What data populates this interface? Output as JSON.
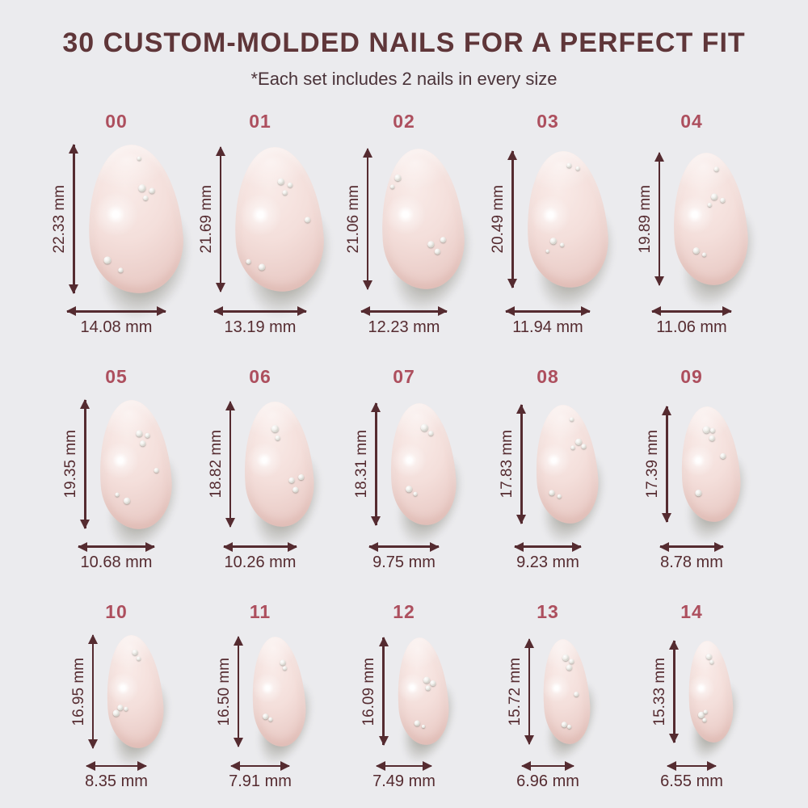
{
  "title": "30 CUSTOM-MOLDED NAILS FOR A PERFECT FIT",
  "subtitle": "*Each set includes 2 nails in every size",
  "unit": "mm",
  "colors": {
    "bg": "#ebebee",
    "title": "#5f3639",
    "subtitle": "#4a3339",
    "accent": "#ad4f5e",
    "dim": "#552b30",
    "nail_light": "#f9ebe8",
    "nail_base": "#f4dfdb",
    "nail_dark": "#e9cbc6",
    "shadow": "#aeada6",
    "gem_light": "#ffffff",
    "gem_dark": "#b4b3aa"
  },
  "sizes": [
    {
      "label": "00",
      "height_mm": 22.33,
      "width_mm": 14.08,
      "height_text": "22.33 mm",
      "width_text": "14.08 mm",
      "gems": [
        [
          57,
          8,
          5
        ],
        [
          56,
          27,
          9
        ],
        [
          67,
          30,
          7
        ],
        [
          60,
          35,
          6
        ],
        [
          14,
          74,
          9
        ],
        [
          28,
          82,
          6
        ]
      ]
    },
    {
      "label": "01",
      "height_mm": 21.69,
      "width_mm": 13.19,
      "height_text": "21.69 mm",
      "width_text": "13.19 mm",
      "gems": [
        [
          52,
          22,
          8
        ],
        [
          63,
          25,
          6
        ],
        [
          57,
          30,
          6
        ],
        [
          80,
          50,
          7
        ],
        [
          10,
          76,
          6
        ],
        [
          24,
          80,
          8
        ]
      ]
    },
    {
      "label": "02",
      "height_mm": 21.06,
      "width_mm": 12.23,
      "height_text": "21.06 mm",
      "width_text": "12.23 mm",
      "gems": [
        [
          20,
          17,
          8
        ],
        [
          14,
          24,
          5
        ],
        [
          55,
          66,
          8
        ],
        [
          70,
          64,
          7
        ],
        [
          62,
          72,
          7
        ]
      ]
    },
    {
      "label": "03",
      "height_mm": 20.49,
      "width_mm": 11.94,
      "height_text": "20.49 mm",
      "width_text": "11.94 mm",
      "gems": [
        [
          55,
          9,
          6
        ],
        [
          66,
          12,
          5
        ],
        [
          27,
          63,
          8
        ],
        [
          40,
          67,
          5
        ],
        [
          21,
          71,
          4
        ]
      ]
    },
    {
      "label": "04",
      "height_mm": 19.89,
      "width_mm": 11.06,
      "height_text": "19.89 mm",
      "width_text": "11.06 mm",
      "gems": [
        [
          60,
          11,
          6
        ],
        [
          54,
          31,
          8
        ],
        [
          66,
          35,
          6
        ],
        [
          48,
          38,
          5
        ],
        [
          24,
          71,
          8
        ],
        [
          36,
          75,
          5
        ]
      ]
    },
    {
      "label": "05",
      "height_mm": 19.35,
      "width_mm": 10.68,
      "height_text": "19.35 mm",
      "width_text": "10.68 mm",
      "gems": [
        [
          54,
          24,
          8
        ],
        [
          67,
          26,
          6
        ],
        [
          59,
          32,
          7
        ],
        [
          76,
          54,
          6
        ],
        [
          19,
          71,
          5
        ],
        [
          31,
          75,
          8
        ]
      ]
    },
    {
      "label": "06",
      "height_mm": 18.82,
      "width_mm": 10.26,
      "height_text": "18.82 mm",
      "width_text": "10.26 mm",
      "gems": [
        [
          44,
          19,
          9
        ],
        [
          49,
          27,
          6
        ],
        [
          64,
          61,
          7
        ],
        [
          78,
          59,
          7
        ],
        [
          69,
          69,
          7
        ]
      ]
    },
    {
      "label": "07",
      "height_mm": 18.31,
      "width_mm": 9.75,
      "height_text": "18.31 mm",
      "width_text": "9.75 mm",
      "gems": [
        [
          51,
          17,
          9
        ],
        [
          62,
          23,
          6
        ],
        [
          21,
          67,
          8
        ],
        [
          32,
          72,
          5
        ]
      ]
    },
    {
      "label": "08",
      "height_mm": 17.83,
      "width_mm": 9.23,
      "height_text": "17.83 mm",
      "width_text": "9.23 mm",
      "gems": [
        [
          61,
          11,
          5
        ],
        [
          67,
          29,
          8
        ],
        [
          59,
          35,
          5
        ],
        [
          76,
          34,
          6
        ],
        [
          19,
          71,
          7
        ],
        [
          32,
          75,
          5
        ]
      ]
    },
    {
      "label": "09",
      "height_mm": 17.39,
      "width_mm": 8.78,
      "height_text": "17.39 mm",
      "width_text": "8.78 mm",
      "gems": [
        [
          41,
          17,
          9
        ],
        [
          54,
          19,
          6
        ],
        [
          51,
          25,
          7
        ],
        [
          67,
          41,
          7
        ],
        [
          21,
          71,
          8
        ]
      ]
    },
    {
      "label": "10",
      "height_mm": 16.95,
      "width_mm": 8.35,
      "height_text": "16.95 mm",
      "width_text": "8.35 mm",
      "gems": [
        [
          51,
          13,
          7
        ],
        [
          58,
          19,
          5
        ],
        [
          17,
          61,
          7
        ],
        [
          9,
          65,
          8
        ],
        [
          29,
          63,
          5
        ]
      ]
    },
    {
      "label": "11",
      "height_mm": 16.5,
      "width_mm": 7.91,
      "height_text": "16.50 mm",
      "width_text": "7.91 mm",
      "gems": [
        [
          57,
          21,
          7
        ],
        [
          62,
          27,
          5
        ],
        [
          17,
          69,
          7
        ],
        [
          28,
          73,
          5
        ]
      ]
    },
    {
      "label": "12",
      "height_mm": 16.09,
      "width_mm": 7.49,
      "height_text": "16.09 mm",
      "width_text": "7.49 mm",
      "gems": [
        [
          54,
          37,
          8
        ],
        [
          67,
          41,
          7
        ],
        [
          57,
          45,
          6
        ],
        [
          29,
          77,
          7
        ],
        [
          44,
          81,
          4
        ]
      ]
    },
    {
      "label": "13",
      "height_mm": 15.72,
      "width_mm": 6.96,
      "height_text": "15.72 mm",
      "width_text": "6.96 mm",
      "gems": [
        [
          47,
          15,
          8
        ],
        [
          61,
          19,
          6
        ],
        [
          54,
          25,
          7
        ],
        [
          67,
          51,
          6
        ],
        [
          34,
          79,
          7
        ],
        [
          47,
          82,
          5
        ]
      ]
    },
    {
      "label": "14",
      "height_mm": 15.33,
      "width_mm": 6.55,
      "height_text": "15.33 mm",
      "width_text": "6.55 mm",
      "gems": [
        [
          47,
          13,
          7
        ],
        [
          54,
          19,
          5
        ],
        [
          19,
          69,
          8
        ],
        [
          31,
          67,
          5
        ],
        [
          27,
          75,
          5
        ]
      ]
    }
  ]
}
